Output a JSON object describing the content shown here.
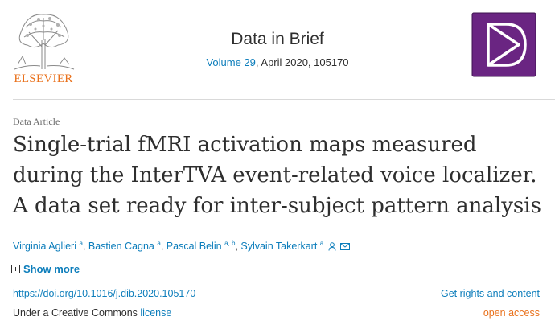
{
  "publisher": {
    "name": "ELSEVIER"
  },
  "journal": {
    "title": "Data in Brief",
    "volume_link": "Volume 29",
    "issue_rest": ", April 2020, 105170"
  },
  "article": {
    "type": "Data Article",
    "title": "Single-trial fMRI activation maps measured during the InterTVA event-related voice localizer. A data set ready for inter-subject pattern analysis",
    "authors": [
      {
        "name": "Virginia Aglieri",
        "aff": "a"
      },
      {
        "name": "Bastien Cagna",
        "aff": "a"
      },
      {
        "name": "Pascal Belin",
        "aff": "a, b"
      },
      {
        "name": "Sylvain Takerkart",
        "aff": "a"
      }
    ],
    "show_more": "Show more",
    "doi": "https://doi.org/10.1016/j.dib.2020.105170",
    "license_prefix": "Under a Creative Commons ",
    "license_link": "license",
    "rights": "Get rights and content",
    "access": "open access"
  },
  "colors": {
    "link": "#0c7dbb",
    "brand": "#e9711c",
    "cover": "#6a2582"
  },
  "icons": [
    "elsevier-tree-logo",
    "journal-cover-logo",
    "person-icon",
    "envelope-icon",
    "plus-square-icon"
  ]
}
